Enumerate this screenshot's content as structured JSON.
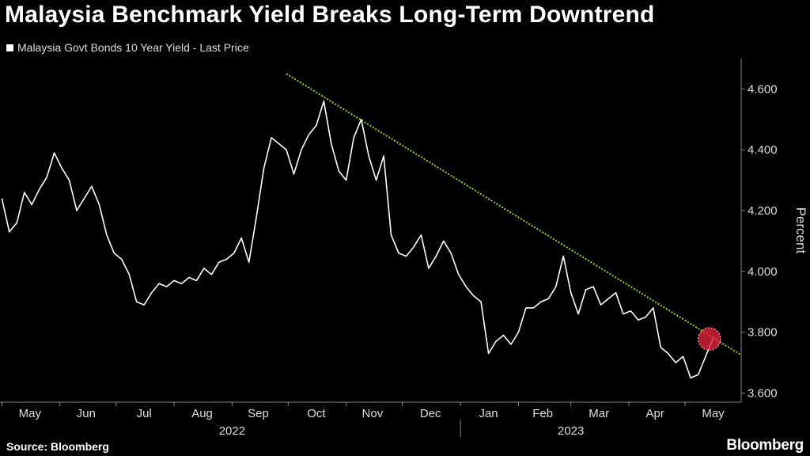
{
  "title": "Malaysia Benchmark Yield Breaks Long-Term Downtrend",
  "source": "Source: Bloomberg",
  "brand": "Bloomberg",
  "colors": {
    "line": "#ffffff",
    "trend": "#9ed21c",
    "marker": "#e0223a",
    "axis": "#888888"
  },
  "chart_data": {
    "type": "line",
    "series": [
      {
        "name": "Malaysia Govt Bonds 10 Year Yield - Last Price",
        "x": [
          "2022-05-01",
          "2022-05-05",
          "2022-05-09",
          "2022-05-13",
          "2022-05-17",
          "2022-05-21",
          "2022-05-25",
          "2022-05-29",
          "2022-06-02",
          "2022-06-06",
          "2022-06-10",
          "2022-06-14",
          "2022-06-18",
          "2022-06-22",
          "2022-06-26",
          "2022-06-30",
          "2022-07-04",
          "2022-07-08",
          "2022-07-12",
          "2022-07-16",
          "2022-07-20",
          "2022-07-24",
          "2022-07-28",
          "2022-08-01",
          "2022-08-05",
          "2022-08-09",
          "2022-08-13",
          "2022-08-17",
          "2022-08-21",
          "2022-08-25",
          "2022-08-29",
          "2022-09-02",
          "2022-09-06",
          "2022-09-10",
          "2022-09-14",
          "2022-09-18",
          "2022-09-22",
          "2022-09-26",
          "2022-09-30",
          "2022-10-04",
          "2022-10-08",
          "2022-10-12",
          "2022-10-16",
          "2022-10-20",
          "2022-10-24",
          "2022-10-28",
          "2022-11-01",
          "2022-11-05",
          "2022-11-09",
          "2022-11-13",
          "2022-11-17",
          "2022-11-21",
          "2022-11-25",
          "2022-11-29",
          "2022-12-03",
          "2022-12-07",
          "2022-12-11",
          "2022-12-15",
          "2022-12-19",
          "2022-12-23",
          "2022-12-27",
          "2022-12-31",
          "2023-01-04",
          "2023-01-08",
          "2023-01-12",
          "2023-01-16",
          "2023-01-20",
          "2023-01-24",
          "2023-01-28",
          "2023-02-01",
          "2023-02-05",
          "2023-02-09",
          "2023-02-13",
          "2023-02-17",
          "2023-02-21",
          "2023-02-25",
          "2023-03-01",
          "2023-03-05",
          "2023-03-09",
          "2023-03-13",
          "2023-03-17",
          "2023-03-21",
          "2023-03-25",
          "2023-03-29",
          "2023-04-02",
          "2023-04-06",
          "2023-04-10",
          "2023-04-14",
          "2023-04-18",
          "2023-04-22",
          "2023-04-26",
          "2023-04-30",
          "2023-05-04",
          "2023-05-08",
          "2023-05-12",
          "2023-05-16"
        ],
        "y": [
          4.24,
          4.13,
          4.16,
          4.26,
          4.22,
          4.27,
          4.31,
          4.39,
          4.34,
          4.3,
          4.2,
          4.24,
          4.28,
          4.22,
          4.12,
          4.06,
          4.04,
          3.99,
          3.9,
          3.89,
          3.93,
          3.96,
          3.95,
          3.97,
          3.96,
          3.98,
          3.97,
          4.01,
          3.99,
          4.03,
          4.04,
          4.06,
          4.11,
          4.03,
          4.18,
          4.34,
          4.44,
          4.42,
          4.4,
          4.32,
          4.4,
          4.45,
          4.48,
          4.56,
          4.42,
          4.33,
          4.3,
          4.44,
          4.5,
          4.38,
          4.3,
          4.38,
          4.12,
          4.06,
          4.05,
          4.08,
          4.12,
          4.01,
          4.05,
          4.1,
          4.06,
          3.99,
          3.95,
          3.92,
          3.9,
          3.73,
          3.77,
          3.79,
          3.76,
          3.8,
          3.88,
          3.88,
          3.9,
          3.91,
          3.95,
          4.05,
          3.93,
          3.86,
          3.94,
          3.95,
          3.89,
          3.91,
          3.93,
          3.86,
          3.87,
          3.84,
          3.85,
          3.88,
          3.75,
          3.73,
          3.7,
          3.72,
          3.65,
          3.66,
          3.72,
          3.78
        ]
      }
    ],
    "trendline": {
      "x": [
        "2022-09-30",
        "2023-05-31"
      ],
      "y": [
        4.65,
        3.725
      ]
    },
    "highlight": {
      "x": "2023-05-14",
      "y": 3.778
    },
    "y_ticks": [
      3.6,
      3.8,
      4.0,
      4.2,
      4.4,
      4.6
    ],
    "y_tick_labels": [
      "3.600",
      "3.800",
      "4.000",
      "4.200",
      "4.400",
      "4.600"
    ],
    "ylim": [
      3.57,
      4.7
    ],
    "ylabel": "Percent",
    "x_ticks": [
      {
        "label": "May",
        "x": "2022-05-16"
      },
      {
        "label": "Jun",
        "x": "2022-06-15"
      },
      {
        "label": "Jul",
        "x": "2022-07-16"
      },
      {
        "label": "Aug",
        "x": "2022-08-16"
      },
      {
        "label": "Sep",
        "x": "2022-09-15"
      },
      {
        "label": "Oct",
        "x": "2022-10-16"
      },
      {
        "label": "Nov",
        "x": "2022-11-15"
      },
      {
        "label": "Dec",
        "x": "2022-12-16"
      },
      {
        "label": "Jan",
        "x": "2023-01-16"
      },
      {
        "label": "Feb",
        "x": "2023-02-14"
      },
      {
        "label": "Mar",
        "x": "2023-03-16"
      },
      {
        "label": "Apr",
        "x": "2023-04-15"
      },
      {
        "label": "May",
        "x": "2023-05-16"
      }
    ],
    "year_labels": [
      {
        "label": "2022",
        "x": "2022-09-01"
      },
      {
        "label": "2023",
        "x": "2023-03-01"
      }
    ],
    "year_divider": "2023-01-01",
    "xlim": [
      "2022-04-30",
      "2023-05-31"
    ],
    "legend": "top-left",
    "grid": false
  }
}
